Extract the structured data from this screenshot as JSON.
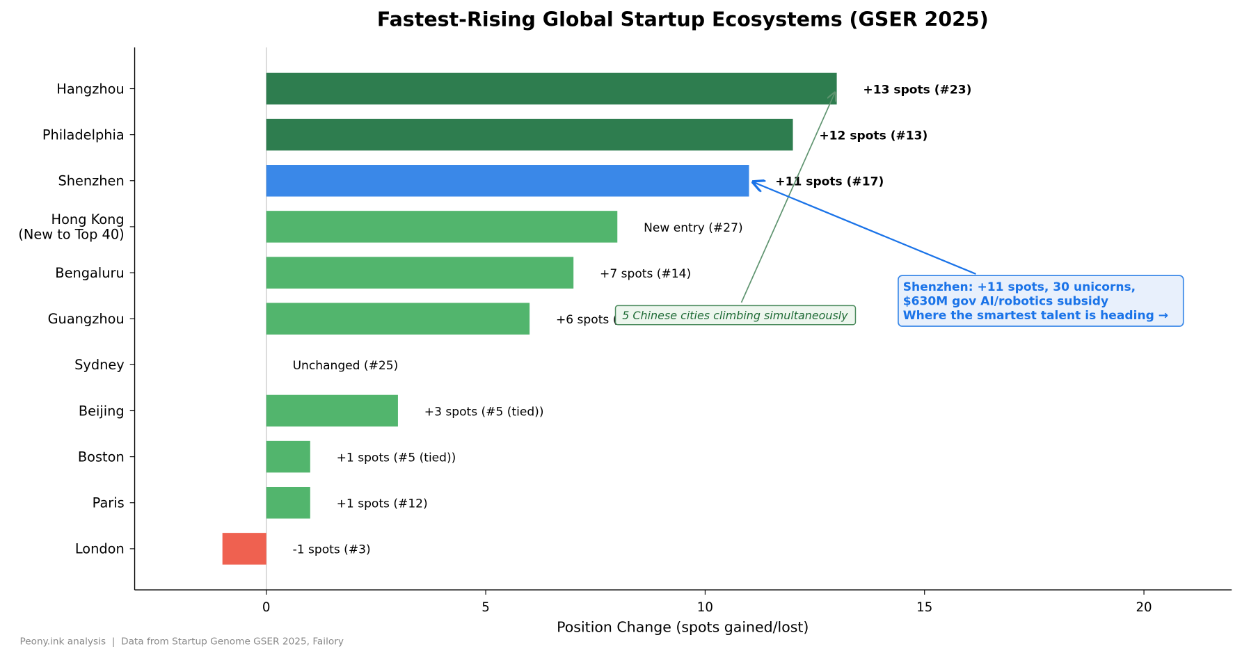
{
  "chart_data": {
    "type": "bar",
    "orientation": "horizontal",
    "title": "Fastest-Rising Global Startup Ecosystems (GSER 2025)",
    "xlabel": "Position Change (spots gained/lost)",
    "ylabel": "",
    "xlim": [
      -3,
      22
    ],
    "xticks": [
      0,
      5,
      10,
      15,
      20
    ],
    "grid": false,
    "categories": [
      "Hangzhou",
      "Philadelphia",
      "Shenzhen",
      "Hong Kong\n(New to Top 40)",
      "Bengaluru",
      "Guangzhou",
      "Sydney",
      "Beijing",
      "Boston",
      "Paris",
      "London"
    ],
    "values": [
      13,
      12,
      11,
      8,
      7,
      6,
      0,
      3,
      1,
      1,
      -1
    ],
    "bar_labels": [
      "+13 spots  (#23)",
      "+12 spots  (#13)",
      "+11 spots  (#17)",
      "New entry  (#27)",
      "+7 spots  (#14)",
      "+6 spots  (#35)",
      "Unchanged  (#25)",
      "+3 spots  (#5 (tied))",
      "+1 spots  (#5 (tied))",
      "+1 spots  (#12)",
      "-1 spots  (#3)"
    ],
    "bold_labels": [
      true,
      true,
      true,
      false,
      false,
      false,
      false,
      false,
      false,
      false,
      false
    ],
    "colors": [
      "#2e7d4f",
      "#2e7d4f",
      "#3a88e8",
      "#52b56d",
      "#52b56d",
      "#52b56d",
      "#52b56d",
      "#52b56d",
      "#52b56d",
      "#52b56d",
      "#ef6150"
    ],
    "annotations": [
      {
        "text": "5 Chinese cities climbing simultaneously",
        "points_to": "Hangzhou",
        "color": "#1e6b35"
      },
      {
        "lines": [
          "Shenzhen: +11 spots, 30 unicorns,",
          "$630M gov AI/robotics subsidy",
          "Where the smartest talent is heading →"
        ],
        "points_to": "Shenzhen",
        "color": "#1a73e8"
      }
    ],
    "footer": "Peony.ink analysis  |  Data from Startup Genome GSER 2025, Failory"
  }
}
